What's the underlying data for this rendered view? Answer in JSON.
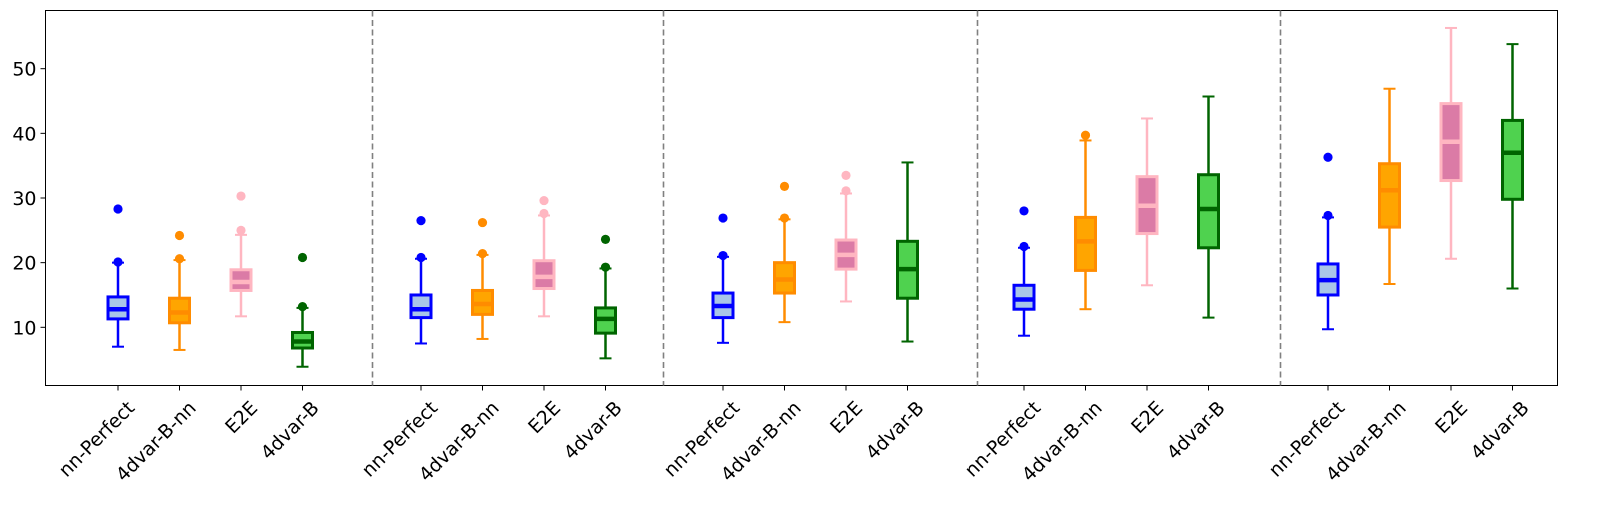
{
  "chart_data": {
    "type": "box",
    "ylim": [
      1,
      59
    ],
    "yticks": [
      10,
      20,
      30,
      40,
      50
    ],
    "series": [
      {
        "name": "nn-Perfect",
        "edge": "#0000ff",
        "fill": "#a9c6e8",
        "median_color": "#0000ff",
        "whisker": "#0000ff",
        "flier": "#0000ff"
      },
      {
        "name": "4dvar-B-nn",
        "edge": "#ff8c00",
        "fill": "#ffa500",
        "median_color": "#ff8c00",
        "whisker": "#ff8c00",
        "flier": "#ff8c00"
      },
      {
        "name": "E2E",
        "edge": "#ffb6c1",
        "fill": "#db7ba6",
        "median_color": "#ffb6c1",
        "whisker": "#ffb6c1",
        "flier": "#ffb6c1"
      },
      {
        "name": "4dvar-B",
        "edge": "#006400",
        "fill": "#4fd24f",
        "median_color": "#006400",
        "whisker": "#006400",
        "flier": "#006400"
      }
    ],
    "groups": [
      {
        "boxes": [
          {
            "whislo": 7.0,
            "q1": 11.3,
            "med": 12.8,
            "q3": 14.7,
            "whishi": 20.0,
            "fliers": [
              20.1,
              28.3
            ]
          },
          {
            "whislo": 6.5,
            "q1": 10.7,
            "med": 12.3,
            "q3": 14.5,
            "whishi": 20.4,
            "fliers": [
              20.6,
              24.2
            ]
          },
          {
            "whislo": 11.7,
            "q1": 15.7,
            "med": 17.0,
            "q3": 18.9,
            "whishi": 24.3,
            "fliers": [
              25.0,
              30.3
            ]
          },
          {
            "whislo": 3.9,
            "q1": 6.8,
            "med": 7.8,
            "q3": 9.2,
            "whishi": 13.0,
            "fliers": [
              13.2,
              20.8
            ]
          }
        ]
      },
      {
        "boxes": [
          {
            "whislo": 7.5,
            "q1": 11.5,
            "med": 12.8,
            "q3": 15.0,
            "whishi": 20.6,
            "fliers": [
              20.8,
              26.5
            ]
          },
          {
            "whislo": 8.2,
            "q1": 12.0,
            "med": 13.6,
            "q3": 15.7,
            "whishi": 21.2,
            "fliers": [
              21.4,
              26.2
            ]
          },
          {
            "whislo": 11.7,
            "q1": 16.0,
            "med": 17.8,
            "q3": 20.3,
            "whishi": 27.3,
            "fliers": [
              27.6,
              29.6
            ]
          },
          {
            "whislo": 5.2,
            "q1": 9.1,
            "med": 11.3,
            "q3": 13.0,
            "whishi": 19.1,
            "fliers": [
              19.3,
              23.6
            ]
          }
        ]
      },
      {
        "boxes": [
          {
            "whislo": 7.6,
            "q1": 11.5,
            "med": 13.3,
            "q3": 15.3,
            "whishi": 20.9,
            "fliers": [
              21.1,
              26.9
            ]
          },
          {
            "whislo": 10.8,
            "q1": 15.3,
            "med": 17.4,
            "q3": 20.0,
            "whishi": 26.7,
            "fliers": [
              26.9,
              31.8
            ]
          },
          {
            "whislo": 14.0,
            "q1": 19.0,
            "med": 21.2,
            "q3": 23.5,
            "whishi": 30.7,
            "fliers": [
              31.1,
              33.5
            ]
          },
          {
            "whislo": 7.8,
            "q1": 14.5,
            "med": 19.0,
            "q3": 23.3,
            "whishi": 35.5,
            "fliers": []
          }
        ]
      },
      {
        "boxes": [
          {
            "whislo": 8.7,
            "q1": 12.8,
            "med": 14.3,
            "q3": 16.5,
            "whishi": 22.3,
            "fliers": [
              22.5,
              28.0
            ]
          },
          {
            "whislo": 12.8,
            "q1": 18.8,
            "med": 23.3,
            "q3": 27.0,
            "whishi": 38.9,
            "fliers": [
              39.7
            ]
          },
          {
            "whislo": 16.5,
            "q1": 24.5,
            "med": 28.8,
            "q3": 33.3,
            "whishi": 42.3,
            "fliers": []
          },
          {
            "whislo": 11.5,
            "q1": 22.3,
            "med": 28.3,
            "q3": 33.6,
            "whishi": 45.7,
            "fliers": []
          }
        ]
      },
      {
        "boxes": [
          {
            "whislo": 9.7,
            "q1": 15.0,
            "med": 17.3,
            "q3": 19.8,
            "whishi": 27.0,
            "fliers": [
              27.3,
              36.3
            ]
          },
          {
            "whislo": 16.7,
            "q1": 25.5,
            "med": 31.2,
            "q3": 35.3,
            "whishi": 46.9,
            "fliers": []
          },
          {
            "whislo": 20.6,
            "q1": 32.7,
            "med": 38.7,
            "q3": 44.6,
            "whishi": 56.3,
            "fliers": []
          },
          {
            "whislo": 16.0,
            "q1": 29.8,
            "med": 37.0,
            "q3": 42.0,
            "whishi": 53.8,
            "fliers": []
          }
        ]
      }
    ],
    "separators": "dashed vertical lines between groups",
    "grid": false
  }
}
